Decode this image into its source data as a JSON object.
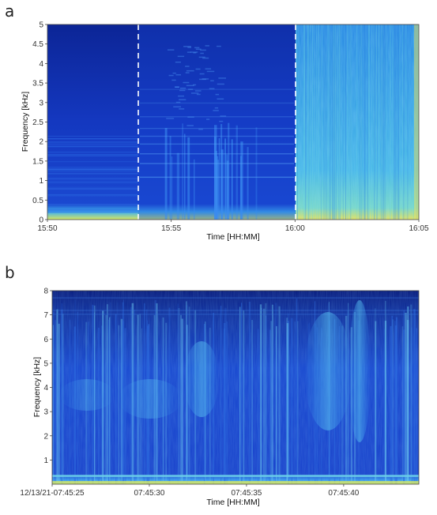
{
  "panels": [
    {
      "letter": "a"
    },
    {
      "letter": "b"
    }
  ],
  "chart_data": [
    {
      "type": "heatmap",
      "xlabel": "Time [HH:MM]",
      "ylabel": "Frequency [kHz]",
      "x_ticks": [
        "15:50",
        "15:55",
        "16:00",
        "16:05"
      ],
      "y_ticks": [
        "0",
        "0.5",
        "1",
        "1.5",
        "2",
        "2.5",
        "3",
        "3.5",
        "4",
        "4.5",
        "5"
      ],
      "ylim": [
        0,
        5
      ],
      "colormap": [
        "#0a1f8c",
        "#1e4fd8",
        "#3aa0f0",
        "#7fe0d8",
        "#e8e860"
      ],
      "segment_markers": [
        "15:54",
        "16:00"
      ]
    },
    {
      "type": "heatmap",
      "xlabel": "Time [HH:MM]",
      "ylabel": "Frequency [kHz]",
      "x_ticks": [
        "12/13/21-07:45:25",
        "07:45:30",
        "07:45:35",
        "07:45:40"
      ],
      "y_ticks": [
        "1",
        "2",
        "3",
        "4",
        "5",
        "6",
        "7",
        "8"
      ],
      "ylim": [
        0,
        8
      ],
      "colormap": [
        "#0a1f8c",
        "#1e4fd8",
        "#3aa0f0",
        "#7fe0d8",
        "#e8e860"
      ]
    }
  ]
}
